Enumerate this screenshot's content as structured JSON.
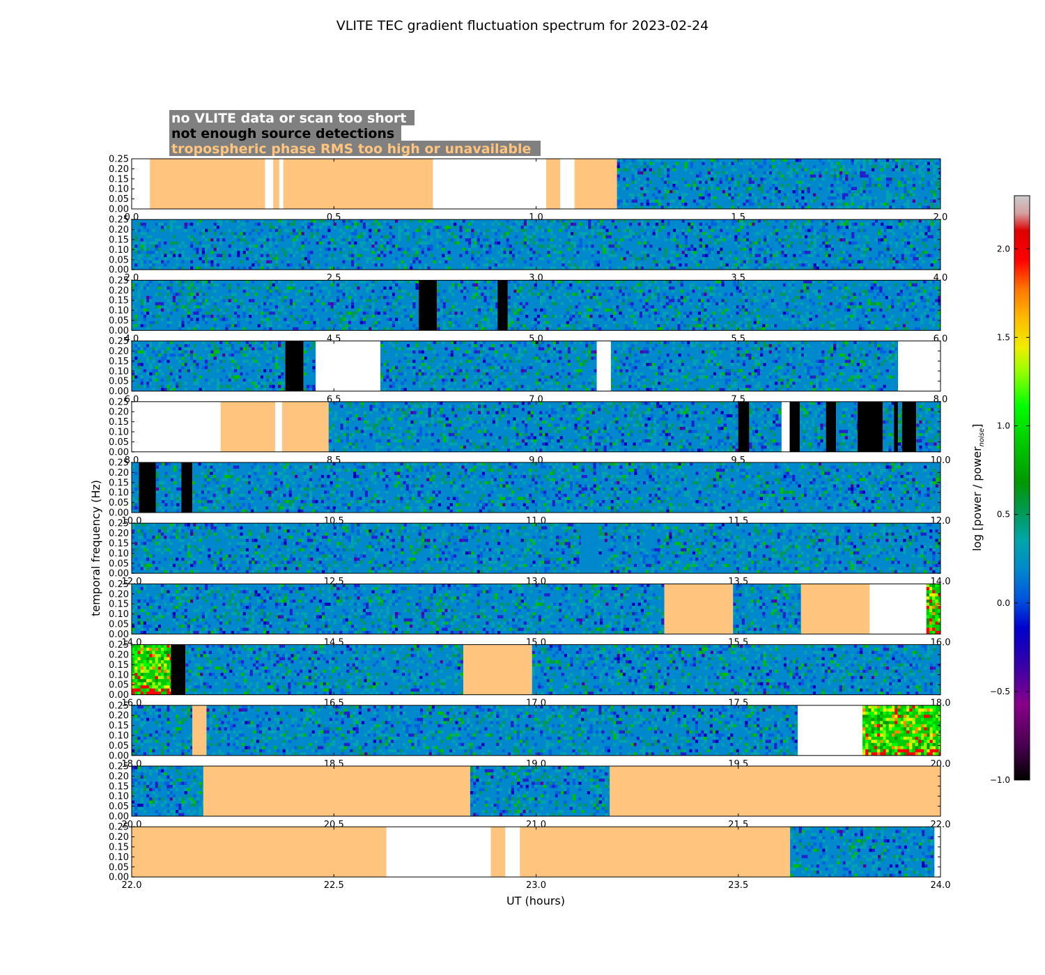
{
  "chart_data": {
    "type": "heatmap",
    "title": "VLITE TEC gradient fluctuation spectrum for 2023-02-24",
    "xlabel": "UT (hours)",
    "ylabel": "temporal frequency (Hz)",
    "ylim": [
      0.0,
      0.25
    ],
    "y_ticks": [
      "0.00",
      "0.05",
      "0.10",
      "0.15",
      "0.20",
      "0.25"
    ],
    "legend": {
      "placement": "top-left",
      "background": "#808080",
      "entries": [
        {
          "label": "no VLITE data or scan too short",
          "color": "#ffffff"
        },
        {
          "label": "not enough source detections",
          "color": "#000000"
        },
        {
          "label": "tropospheric phase RMS too high or unavailable",
          "color": "#ffc57f"
        }
      ]
    },
    "colorbar": {
      "label": "log [power / power",
      "label_subscript": "noise",
      "label_close": "]",
      "range": [
        -1.0,
        2.3
      ],
      "tick_values": [
        -1.0,
        -0.5,
        0.0,
        0.5,
        1.0,
        1.5,
        2.0
      ],
      "tick_labels": [
        "−1.0",
        "−0.5",
        "0.0",
        "0.5",
        "1.0",
        "1.5",
        "2.0"
      ]
    },
    "category_colors": {
      "white": "#ffffff",
      "black": "#000000",
      "trop": "#ffc57f"
    },
    "rows": [
      {
        "range": [
          0.0,
          2.0
        ],
        "ticks": [
          "0.0",
          "0.5",
          "1.0",
          "1.5",
          "2.0"
        ],
        "segments": [
          {
            "start": 0.0,
            "end": 0.045,
            "kind": "white"
          },
          {
            "start": 0.045,
            "end": 0.33,
            "kind": "trop"
          },
          {
            "start": 0.33,
            "end": 0.35,
            "kind": "white"
          },
          {
            "start": 0.35,
            "end": 0.365,
            "kind": "trop"
          },
          {
            "start": 0.365,
            "end": 0.375,
            "kind": "white"
          },
          {
            "start": 0.375,
            "end": 0.745,
            "kind": "trop"
          },
          {
            "start": 0.745,
            "end": 1.025,
            "kind": "white"
          },
          {
            "start": 1.025,
            "end": 1.06,
            "kind": "trop"
          },
          {
            "start": 1.06,
            "end": 1.095,
            "kind": "white"
          },
          {
            "start": 1.095,
            "end": 1.2,
            "kind": "trop"
          },
          {
            "start": 1.2,
            "end": 2.0,
            "kind": "data"
          }
        ]
      },
      {
        "range": [
          2.0,
          4.0
        ],
        "ticks": [
          "2.0",
          "2.5",
          "3.0",
          "3.5",
          "4.0"
        ],
        "segments": [
          {
            "start": 2.0,
            "end": 4.0,
            "kind": "data"
          }
        ]
      },
      {
        "range": [
          4.0,
          6.0
        ],
        "ticks": [
          "4.0",
          "4.5",
          "5.0",
          "5.5",
          "6.0"
        ],
        "segments": [
          {
            "start": 4.0,
            "end": 4.71,
            "kind": "data"
          },
          {
            "start": 4.71,
            "end": 4.755,
            "kind": "black"
          },
          {
            "start": 4.755,
            "end": 4.905,
            "kind": "data"
          },
          {
            "start": 4.905,
            "end": 4.93,
            "kind": "black"
          },
          {
            "start": 4.93,
            "end": 6.0,
            "kind": "data"
          }
        ]
      },
      {
        "range": [
          6.0,
          8.0
        ],
        "ticks": [
          "6.0",
          "6.5",
          "7.0",
          "7.5",
          "8.0"
        ],
        "segments": [
          {
            "start": 6.0,
            "end": 6.38,
            "kind": "data"
          },
          {
            "start": 6.38,
            "end": 6.425,
            "kind": "black"
          },
          {
            "start": 6.425,
            "end": 6.455,
            "kind": "data"
          },
          {
            "start": 6.455,
            "end": 6.615,
            "kind": "white"
          },
          {
            "start": 6.615,
            "end": 7.15,
            "kind": "data"
          },
          {
            "start": 7.15,
            "end": 7.185,
            "kind": "white"
          },
          {
            "start": 7.185,
            "end": 7.895,
            "kind": "data"
          },
          {
            "start": 7.895,
            "end": 8.0,
            "kind": "white"
          }
        ]
      },
      {
        "range": [
          8.0,
          10.0
        ],
        "ticks": [
          "8.0",
          "8.5",
          "9.0",
          "9.5",
          "10.0"
        ],
        "segments": [
          {
            "start": 8.0,
            "end": 8.22,
            "kind": "white"
          },
          {
            "start": 8.22,
            "end": 8.355,
            "kind": "trop"
          },
          {
            "start": 8.355,
            "end": 8.372,
            "kind": "white"
          },
          {
            "start": 8.372,
            "end": 8.487,
            "kind": "trop"
          },
          {
            "start": 8.487,
            "end": 9.5,
            "kind": "data"
          },
          {
            "start": 9.5,
            "end": 9.527,
            "kind": "black"
          },
          {
            "start": 9.527,
            "end": 9.607,
            "kind": "data"
          },
          {
            "start": 9.607,
            "end": 9.627,
            "kind": "white"
          },
          {
            "start": 9.627,
            "end": 9.652,
            "kind": "black"
          },
          {
            "start": 9.652,
            "end": 9.717,
            "kind": "data"
          },
          {
            "start": 9.717,
            "end": 9.742,
            "kind": "black"
          },
          {
            "start": 9.742,
            "end": 9.795,
            "kind": "data"
          },
          {
            "start": 9.795,
            "end": 9.857,
            "kind": "black"
          },
          {
            "start": 9.857,
            "end": 9.885,
            "kind": "data"
          },
          {
            "start": 9.885,
            "end": 9.895,
            "kind": "black"
          },
          {
            "start": 9.895,
            "end": 9.905,
            "kind": "data"
          },
          {
            "start": 9.905,
            "end": 9.94,
            "kind": "black"
          },
          {
            "start": 9.94,
            "end": 10.0,
            "kind": "data"
          }
        ]
      },
      {
        "range": [
          10.0,
          12.0
        ],
        "ticks": [
          "10.0",
          "10.5",
          "11.0",
          "11.5",
          "12.0"
        ],
        "segments": [
          {
            "start": 10.0,
            "end": 10.018,
            "kind": "data"
          },
          {
            "start": 10.018,
            "end": 10.06,
            "kind": "black"
          },
          {
            "start": 10.06,
            "end": 10.123,
            "kind": "data"
          },
          {
            "start": 10.123,
            "end": 10.15,
            "kind": "black"
          },
          {
            "start": 10.15,
            "end": 12.0,
            "kind": "data"
          }
        ]
      },
      {
        "range": [
          12.0,
          14.0
        ],
        "ticks": [
          "12.0",
          "12.5",
          "13.0",
          "13.5",
          "14.0"
        ],
        "segments": [
          {
            "start": 12.0,
            "end": 13.11,
            "kind": "data"
          },
          {
            "start": 13.11,
            "end": 13.155,
            "kind": "flat",
            "color": "#0088cc"
          },
          {
            "start": 13.155,
            "end": 14.0,
            "kind": "data"
          }
        ]
      },
      {
        "range": [
          14.0,
          16.0
        ],
        "ticks": [
          "14.0",
          "14.5",
          "15.0",
          "15.5",
          "16.0"
        ],
        "segments": [
          {
            "start": 14.0,
            "end": 15.317,
            "kind": "data"
          },
          {
            "start": 15.317,
            "end": 15.487,
            "kind": "trop"
          },
          {
            "start": 15.487,
            "end": 15.655,
            "kind": "data"
          },
          {
            "start": 15.655,
            "end": 15.825,
            "kind": "trop"
          },
          {
            "start": 15.825,
            "end": 15.965,
            "kind": "white"
          },
          {
            "start": 15.965,
            "end": 16.0,
            "kind": "data",
            "hot": true
          }
        ]
      },
      {
        "range": [
          16.0,
          18.0
        ],
        "ticks": [
          "16.0",
          "16.5",
          "17.0",
          "17.5",
          "18.0"
        ],
        "segments": [
          {
            "start": 16.0,
            "end": 16.097,
            "kind": "data",
            "hot": true
          },
          {
            "start": 16.097,
            "end": 16.133,
            "kind": "black"
          },
          {
            "start": 16.133,
            "end": 16.82,
            "kind": "data"
          },
          {
            "start": 16.82,
            "end": 16.99,
            "kind": "trop"
          },
          {
            "start": 16.99,
            "end": 18.0,
            "kind": "data"
          }
        ]
      },
      {
        "range": [
          18.0,
          20.0
        ],
        "ticks": [
          "18.0",
          "18.5",
          "19.0",
          "19.5",
          "20.0"
        ],
        "segments": [
          {
            "start": 18.0,
            "end": 18.15,
            "kind": "data"
          },
          {
            "start": 18.15,
            "end": 18.185,
            "kind": "trop"
          },
          {
            "start": 18.185,
            "end": 19.647,
            "kind": "data"
          },
          {
            "start": 19.647,
            "end": 19.807,
            "kind": "white"
          },
          {
            "start": 19.807,
            "end": 20.0,
            "kind": "data",
            "hot": true
          }
        ]
      },
      {
        "range": [
          20.0,
          22.0
        ],
        "ticks": [
          "20.0",
          "20.5",
          "21.0",
          "21.5",
          "22.0"
        ],
        "segments": [
          {
            "start": 20.0,
            "end": 20.177,
            "kind": "data"
          },
          {
            "start": 20.177,
            "end": 20.837,
            "kind": "trop"
          },
          {
            "start": 20.837,
            "end": 21.182,
            "kind": "data"
          },
          {
            "start": 21.182,
            "end": 22.0,
            "kind": "trop"
          }
        ]
      },
      {
        "range": [
          22.0,
          24.0
        ],
        "ticks": [
          "22.0",
          "22.5",
          "23.0",
          "23.5",
          "24.0"
        ],
        "segments": [
          {
            "start": 22.0,
            "end": 22.63,
            "kind": "trop"
          },
          {
            "start": 22.63,
            "end": 22.888,
            "kind": "white"
          },
          {
            "start": 22.888,
            "end": 22.924,
            "kind": "trop"
          },
          {
            "start": 22.924,
            "end": 22.96,
            "kind": "white"
          },
          {
            "start": 22.96,
            "end": 23.628,
            "kind": "trop"
          },
          {
            "start": 23.628,
            "end": 23.985,
            "kind": "data"
          },
          {
            "start": 23.985,
            "end": 24.0,
            "kind": "white"
          }
        ]
      }
    ]
  }
}
